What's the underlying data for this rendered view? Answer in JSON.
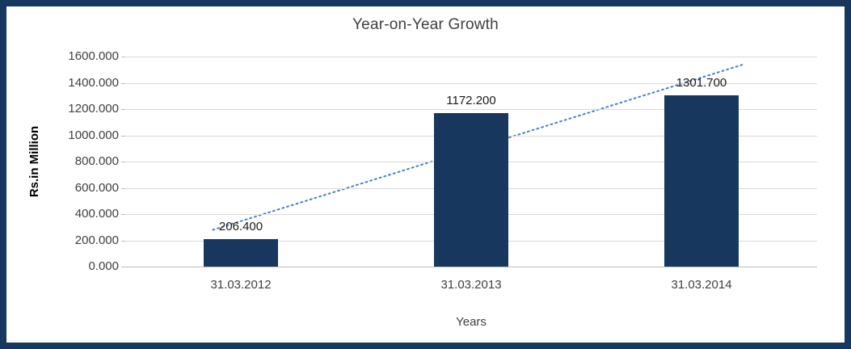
{
  "chart_data": {
    "type": "bar",
    "title": "Year-on-Year Growth",
    "xlabel": "Years",
    "ylabel": "Rs.in Million",
    "categories": [
      "31.03.2012",
      "31.03.2013",
      "31.03.2014"
    ],
    "values": [
      206.4,
      1172.2,
      1301.7
    ],
    "data_labels": [
      "206.400",
      "1172.200",
      "1301.700"
    ],
    "y_ticks": [
      "1600.000",
      "1400.000",
      "1200.000",
      "1000.000",
      "800.000",
      "600.000",
      "400.000",
      "200.000",
      "0.000"
    ],
    "ylim": [
      0,
      1600
    ],
    "grid": true,
    "legend": "none",
    "bar_color": "#17375E",
    "frame_color": "#17375E",
    "gridline_color": "#D9D9D9",
    "axis_line_color": "#BFBFBF",
    "trendline": {
      "type": "linear",
      "style": "dotted",
      "color": "#4F81BD"
    }
  }
}
